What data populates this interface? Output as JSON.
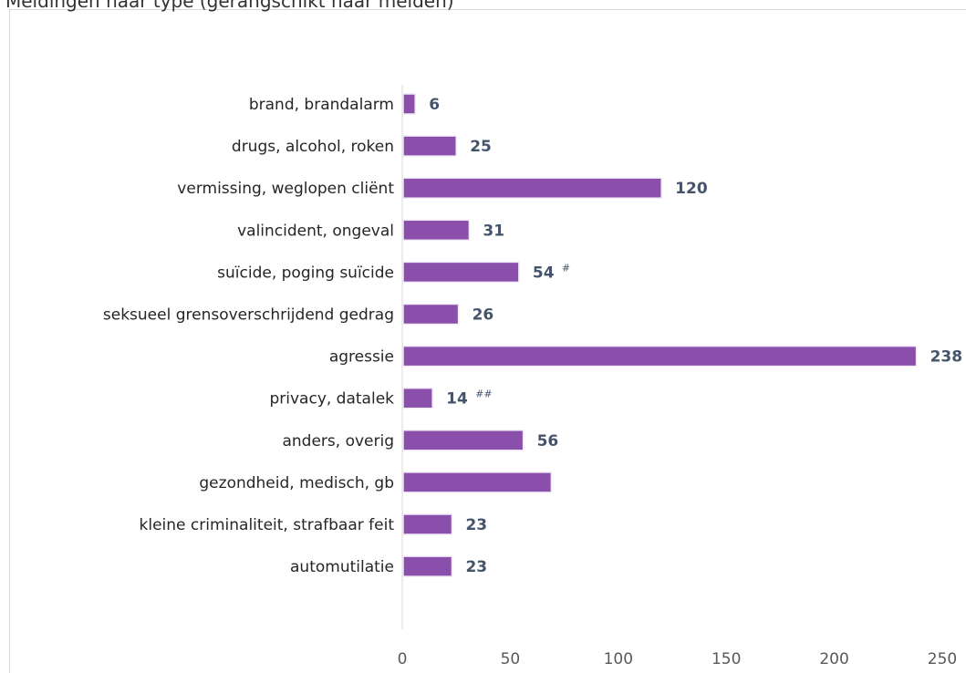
{
  "title": "Meldingen naar type (gerangschikt naar melden)",
  "chart_data": {
    "type": "bar",
    "orientation": "horizontal",
    "categories": [
      "brand, brandalarm",
      "drugs, alcohol, roken",
      "vermissing, weglopen cliënt",
      "valincident, ongeval",
      "suïcide, poging suïcide",
      "seksueel grensoverschrijdend gedrag",
      "agressie",
      "privacy, datalek",
      "anders, overig",
      "gezondheid, medisch, gb",
      "kleine criminaliteit, strafbaar feit",
      "automutilatie"
    ],
    "values": [
      6,
      25,
      120,
      31,
      54,
      26,
      238,
      14,
      56,
      69,
      23,
      23
    ],
    "data_labels": [
      "6",
      "25",
      "120",
      "31",
      "54",
      "26",
      "238",
      "14",
      "56",
      "",
      "23",
      "23"
    ],
    "notes": [
      "",
      "",
      "",
      "",
      "#",
      "",
      "",
      "##",
      "",
      "",
      "",
      ""
    ],
    "xlim": [
      0,
      250
    ],
    "x_ticks": [
      0,
      50,
      100,
      150,
      200,
      250
    ],
    "grid": false,
    "legend": "none",
    "bar_color": "#8a4fab",
    "bar_edge_color": "#f3eaf7",
    "label_color": "#44546a"
  }
}
